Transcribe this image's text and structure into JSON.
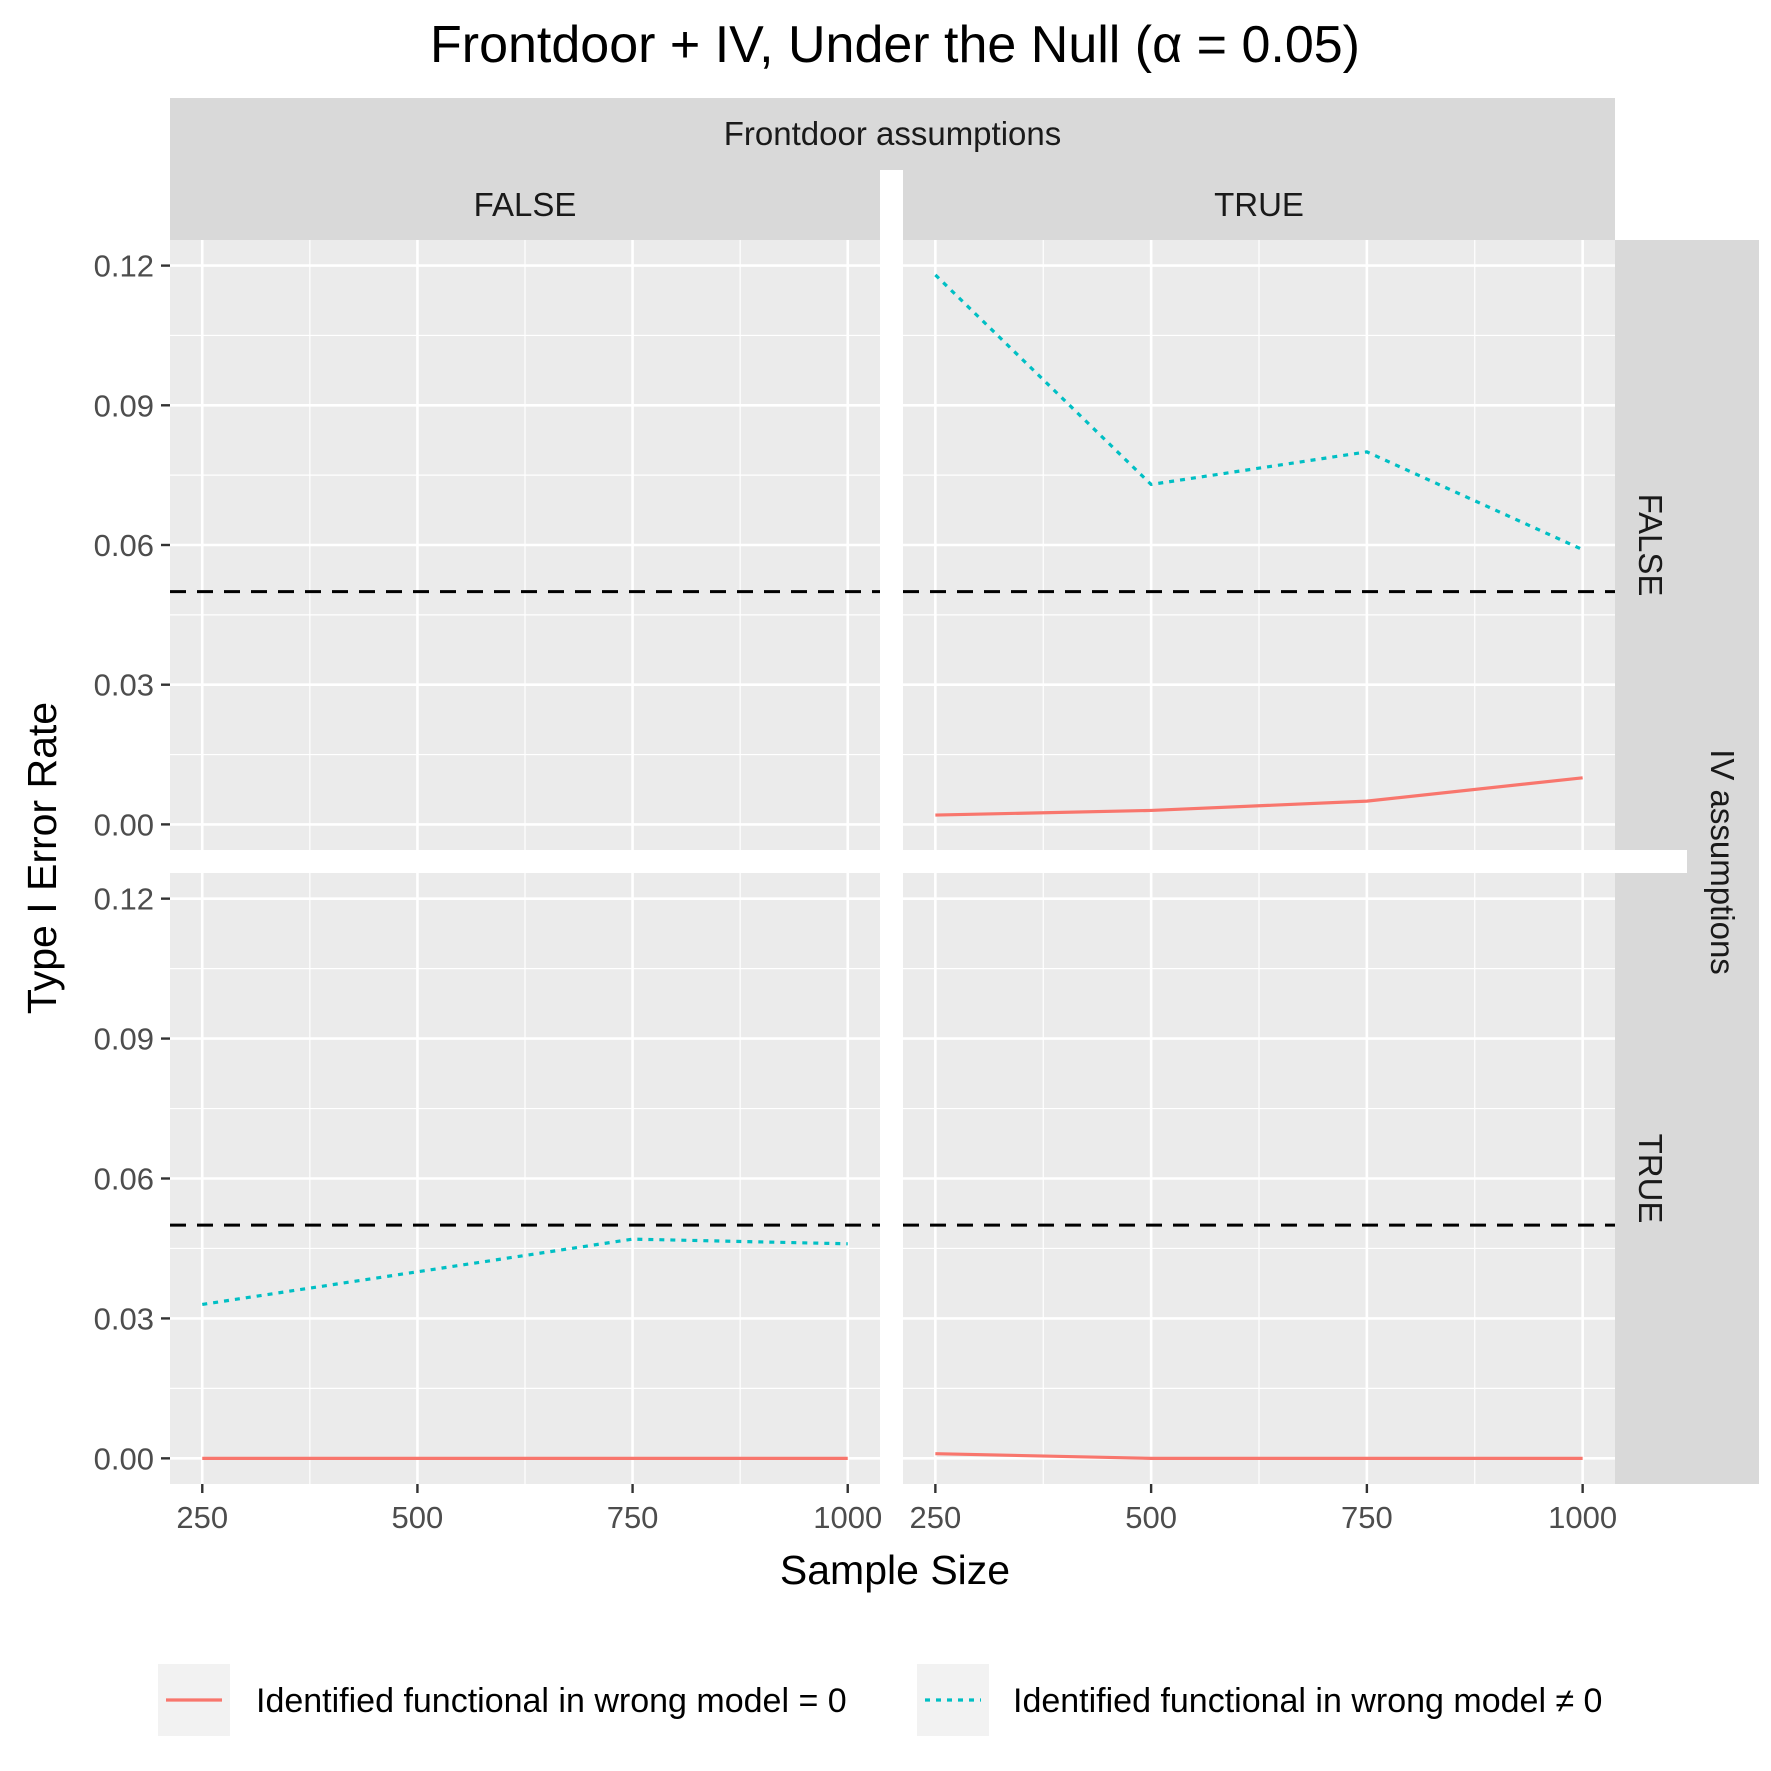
{
  "chart_data": {
    "type": "line",
    "title": "Frontdoor + IV, Under the Null (α = 0.05)",
    "xlabel": "Sample Size",
    "ylabel": "Type I Error Rate",
    "col_facet_title": "Frontdoor assumptions",
    "row_facet_title": "IV assumptions",
    "col_levels": [
      "FALSE",
      "TRUE"
    ],
    "row_levels": [
      "FALSE",
      "TRUE"
    ],
    "x_ticks": [
      250,
      500,
      750,
      1000
    ],
    "x_tick_labels": [
      "250",
      "500",
      "750",
      "1000"
    ],
    "y_ticks": [
      0,
      0.03,
      0.06,
      0.09,
      0.12
    ],
    "y_tick_labels": [
      "0.00",
      "0.03",
      "0.06",
      "0.09",
      "0.12"
    ],
    "xlim": [
      212.5,
      1037.5
    ],
    "ylim": [
      -0.0055,
      0.1255
    ],
    "grid": true,
    "reference_line": 0.05,
    "legend_position": "bottom",
    "series_styles": [
      {
        "name": "Identified functional in wrong model = 0",
        "color": "#F8766D",
        "dash": "solid"
      },
      {
        "name": "Identified functional in wrong model ≠ 0",
        "color": "#00BFC4",
        "dash": "dotted"
      }
    ],
    "panels": [
      {
        "row": "FALSE",
        "col": "FALSE",
        "series": []
      },
      {
        "row": "FALSE",
        "col": "TRUE",
        "series": [
          {
            "name": "Identified functional in wrong model = 0",
            "x": [
              250,
              500,
              750,
              1000
            ],
            "y": [
              0.002,
              0.003,
              0.005,
              0.01
            ]
          },
          {
            "name": "Identified functional in wrong model ≠ 0",
            "x": [
              250,
              500,
              750,
              1000
            ],
            "y": [
              0.118,
              0.073,
              0.08,
              0.059
            ]
          }
        ]
      },
      {
        "row": "TRUE",
        "col": "FALSE",
        "series": [
          {
            "name": "Identified functional in wrong model = 0",
            "x": [
              250,
              500,
              750,
              1000
            ],
            "y": [
              0.0,
              0.0,
              0.0,
              0.0
            ]
          },
          {
            "name": "Identified functional in wrong model ≠ 0",
            "x": [
              250,
              500,
              750,
              1000
            ],
            "y": [
              0.033,
              0.04,
              0.047,
              0.046
            ]
          }
        ]
      },
      {
        "row": "TRUE",
        "col": "TRUE",
        "series": [
          {
            "name": "Identified functional in wrong model = 0",
            "x": [
              250,
              500,
              750,
              1000
            ],
            "y": [
              0.001,
              0.0,
              0.0,
              0.0
            ]
          },
          {
            "name": "Identified functional in wrong model ≠ 0",
            "x": [],
            "y": []
          }
        ]
      }
    ]
  }
}
